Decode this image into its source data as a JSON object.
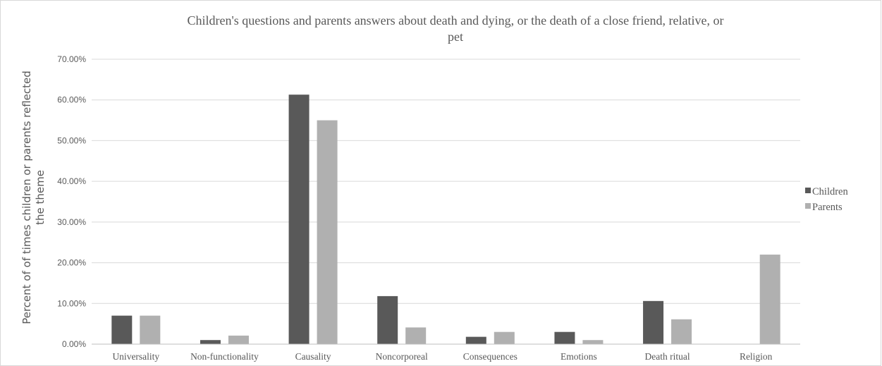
{
  "chart_data": {
    "type": "bar",
    "title_lines": [
      "Children's questions and parents answers about death and dying, or the death of a close friend, relative, or",
      "pet"
    ],
    "ylabel_lines": [
      "Percent of of times children or parents reflected",
      "the theme"
    ],
    "xlabel": "",
    "categories": [
      "Universality",
      "Non-functionality",
      "Causality",
      "Noncorporeal",
      "Consequences",
      "Emotions",
      "Death ritual",
      "Religion"
    ],
    "series": [
      {
        "name": "Children",
        "color": "#595959",
        "values": [
          7.0,
          1.0,
          61.3,
          11.8,
          1.8,
          3.0,
          10.6,
          0.0
        ]
      },
      {
        "name": "Parents",
        "color": "#b0b0b0",
        "values": [
          7.0,
          2.1,
          55.0,
          4.1,
          3.0,
          1.0,
          6.1,
          22.0
        ]
      }
    ],
    "ylim": [
      0,
      70
    ],
    "yticks": [
      0,
      10,
      20,
      30,
      40,
      50,
      60,
      70
    ],
    "ytick_labels": [
      "0.00%",
      "10.00%",
      "20.00%",
      "30.00%",
      "40.00%",
      "50.00%",
      "60.00%",
      "70.00%"
    ],
    "grid": true,
    "legend_position": "right"
  }
}
